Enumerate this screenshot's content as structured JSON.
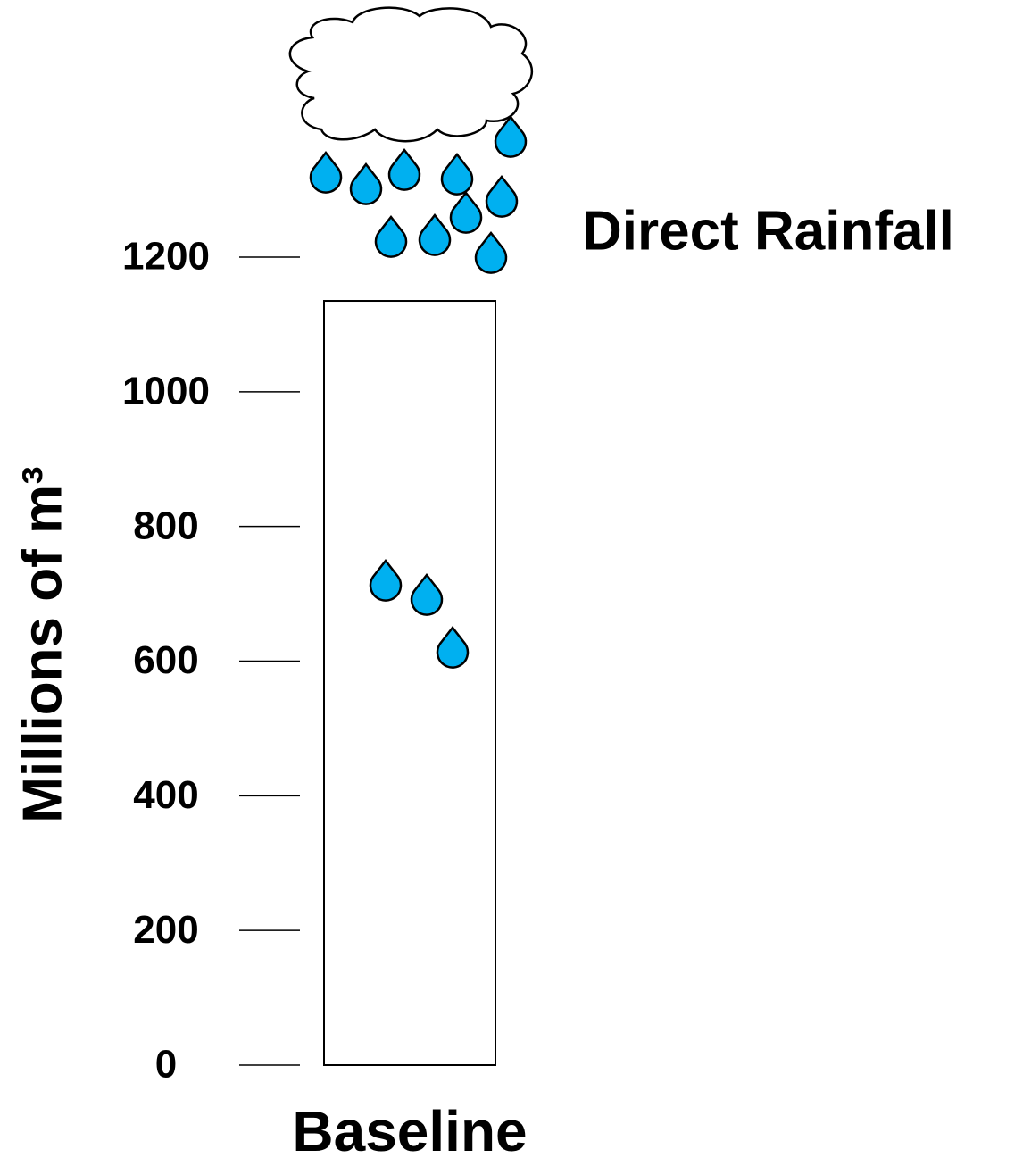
{
  "chart_data": {
    "type": "bar",
    "categories": [
      "Baseline"
    ],
    "values": [
      1135
    ],
    "color": "#ffffff",
    "ylabel": "Millions of m³",
    "annotation": "Direct Rainfall",
    "ylim": [
      0,
      1200
    ],
    "yticks": [
      0,
      200,
      400,
      600,
      800,
      1000,
      1200
    ]
  }
}
